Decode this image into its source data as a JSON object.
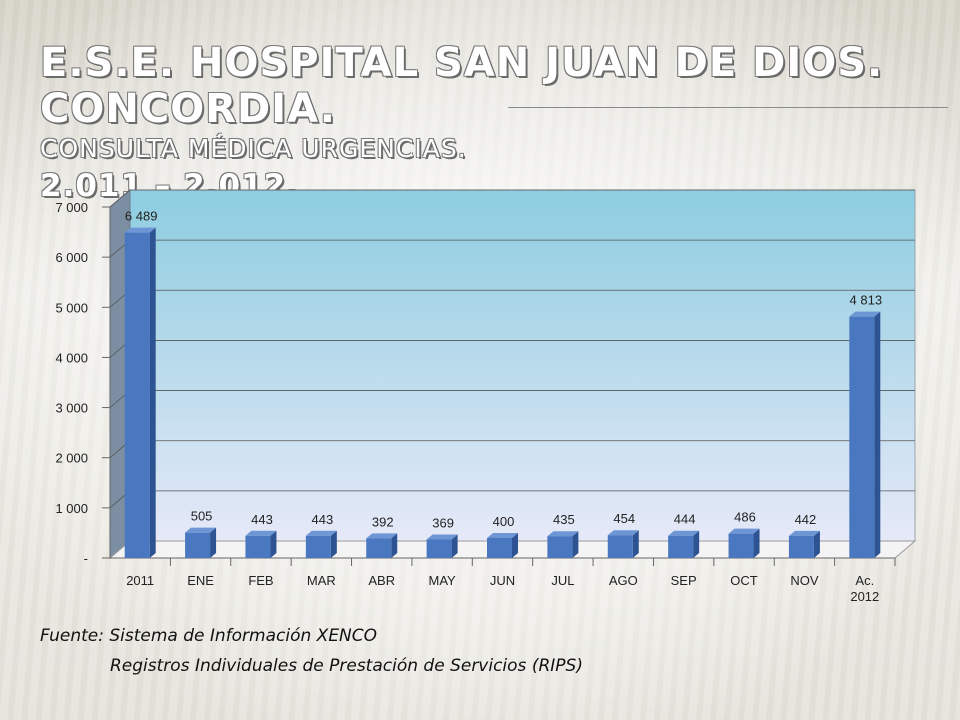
{
  "title": {
    "line1": "E.S.E. HOSPITAL SAN JUAN DE DIOS.  CONCORDIA.",
    "line2": "CONSULTA MÉDICA URGENCIAS.",
    "line3": "2.011 – 2.012."
  },
  "source": {
    "line1": "Fuente: Sistema de Información XENCO",
    "line2": "Registros Individuales de Prestación de Servicios (RIPS)"
  },
  "colors": {
    "bar_front": "#4a78c0",
    "bar_side": "#2e5392",
    "bar_top": "#6e96d4",
    "plot_top": "#8dcde0",
    "plot_bottom": "#e6e9f8",
    "wall_side": "#7c8fa2"
  },
  "chart_data": {
    "type": "bar",
    "categories": [
      "2011",
      "ENE",
      "FEB",
      "MAR",
      "ABR",
      "MAY",
      "JUN",
      "JUL",
      "AGO",
      "SEP",
      "OCT",
      "NOV",
      "Ac.\n2012"
    ],
    "values": [
      6489,
      505,
      443,
      443,
      392,
      369,
      400,
      435,
      454,
      444,
      486,
      442,
      4813
    ],
    "data_labels": [
      "6 489",
      "505",
      "443",
      "443",
      "392",
      "369",
      "400",
      "435",
      "454",
      "444",
      "486",
      "442",
      "4 813"
    ],
    "y_ticks": [
      0,
      1000,
      2000,
      3000,
      4000,
      5000,
      6000,
      7000
    ],
    "y_tick_labels": [
      "-",
      "1 000",
      "2 000",
      "3 000",
      "4 000",
      "5 000",
      "6 000",
      "7 000"
    ],
    "ylim": [
      0,
      7000
    ],
    "grid": true,
    "legend": "none",
    "style": "3d-column"
  }
}
